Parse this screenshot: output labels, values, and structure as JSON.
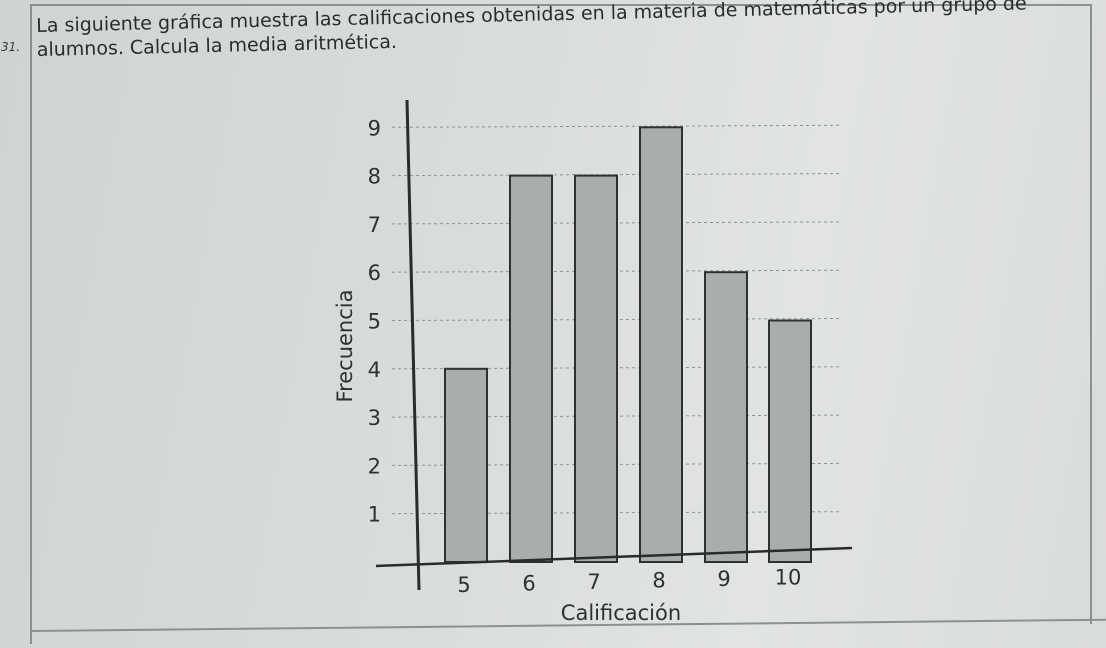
{
  "question": {
    "number": "31.",
    "text": "La siguiente gráfica muestra las calificaciones obtenidas en la materia de matemáticas por un grupo de alumnos. Calcula la media aritmética."
  },
  "chart_data": {
    "type": "bar",
    "categories": [
      "5",
      "6",
      "7",
      "8",
      "9",
      "10"
    ],
    "values": [
      4,
      8,
      8,
      9,
      6,
      5
    ],
    "xlabel": "Calificación",
    "ylabel": "Frecuencia",
    "yticks": [
      1,
      2,
      3,
      4,
      5,
      6,
      7,
      8,
      9
    ],
    "ylim": [
      0,
      9
    ],
    "grid": true,
    "colors": {
      "bar_fill": "#a9adad",
      "bar_stroke": "#2f3131",
      "axis": "#2a2c2c",
      "grid": "#8f9393",
      "text": "#2f3131"
    }
  }
}
